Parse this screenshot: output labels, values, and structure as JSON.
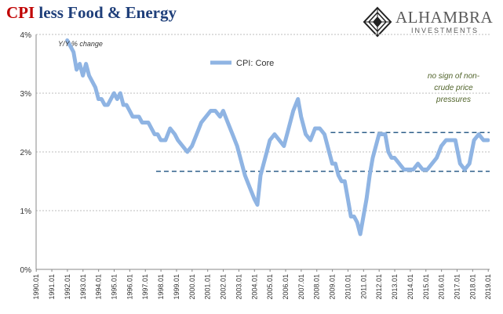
{
  "title": {
    "part1": "CPI",
    "part2": " less Food & Energy"
  },
  "logo": {
    "name": "ALHAMBRA",
    "sub": "INVESTMENTS",
    "icon": "alhambra-diamond-logo-icon"
  },
  "colors": {
    "line": "#8fb4e3",
    "dash": "#2e5f8a",
    "title_red": "#c00000",
    "title_blue": "#1f3f7a",
    "annotation": "#4f6228"
  },
  "chart_data": {
    "type": "line",
    "ylabel": "Y/Y % change",
    "ylim": [
      0,
      4
    ],
    "yticks": [
      "0%",
      "1%",
      "2%",
      "3%",
      "4%"
    ],
    "xlim": [
      1990.0,
      2019.1
    ],
    "xticks": [
      "1990.01",
      "1991.01",
      "1992.01",
      "1993.01",
      "1994.01",
      "1995.01",
      "1996.01",
      "1997.01",
      "1998.01",
      "1999.01",
      "2000.01",
      "2001.01",
      "2002.01",
      "2003.01",
      "2004.01",
      "2005.01",
      "2006.01",
      "2007.01",
      "2008.01",
      "2009.01",
      "2010.01",
      "2011.01",
      "2012.01",
      "2013.01",
      "2014.01",
      "2015.01",
      "2016.01",
      "2017.01",
      "2018.01",
      "2019.01"
    ],
    "grid": true,
    "legend_position": "top-left",
    "series": [
      {
        "name": "CPI: Core",
        "x": [
          1992.0,
          1992.2,
          1992.4,
          1992.6,
          1992.8,
          1993.0,
          1993.2,
          1993.4,
          1993.6,
          1993.8,
          1994.0,
          1994.2,
          1994.4,
          1994.6,
          1994.8,
          1995.0,
          1995.2,
          1995.4,
          1995.6,
          1995.8,
          1996.0,
          1996.2,
          1996.4,
          1996.6,
          1996.8,
          1997.0,
          1997.2,
          1997.4,
          1997.6,
          1997.8,
          1998.0,
          1998.3,
          1998.6,
          1998.9,
          1999.1,
          1999.4,
          1999.7,
          2000.0,
          2000.3,
          2000.6,
          2000.9,
          2001.2,
          2001.5,
          2001.8,
          2002.0,
          2002.3,
          2002.6,
          2002.9,
          2003.1,
          2003.4,
          2003.7,
          2004.0,
          2004.2,
          2004.4,
          2004.6,
          2004.8,
          2005.0,
          2005.3,
          2005.6,
          2005.9,
          2006.2,
          2006.5,
          2006.8,
          2007.0,
          2007.3,
          2007.6,
          2007.9,
          2008.2,
          2008.5,
          2008.8,
          2009.0,
          2009.2,
          2009.4,
          2009.6,
          2009.8,
          2010.0,
          2010.2,
          2010.4,
          2010.6,
          2010.8,
          2011.0,
          2011.2,
          2011.4,
          2011.6,
          2011.8,
          2012.0,
          2012.2,
          2012.4,
          2012.6,
          2012.8,
          2013.0,
          2013.3,
          2013.6,
          2013.9,
          2014.2,
          2014.5,
          2014.8,
          2015.1,
          2015.4,
          2015.7,
          2016.0,
          2016.3,
          2016.6,
          2016.9,
          2017.2,
          2017.5,
          2017.8,
          2018.1,
          2018.4,
          2018.7,
          2019.0
        ],
        "values": [
          3.9,
          3.8,
          3.7,
          3.4,
          3.5,
          3.3,
          3.5,
          3.3,
          3.2,
          3.1,
          2.9,
          2.9,
          2.8,
          2.8,
          2.9,
          3.0,
          2.9,
          3.0,
          2.8,
          2.8,
          2.7,
          2.6,
          2.6,
          2.6,
          2.5,
          2.5,
          2.5,
          2.4,
          2.3,
          2.3,
          2.2,
          2.2,
          2.4,
          2.3,
          2.2,
          2.1,
          2.0,
          2.1,
          2.3,
          2.5,
          2.6,
          2.7,
          2.7,
          2.6,
          2.7,
          2.5,
          2.3,
          2.1,
          1.9,
          1.6,
          1.4,
          1.2,
          1.1,
          1.6,
          1.8,
          2.0,
          2.2,
          2.3,
          2.2,
          2.1,
          2.4,
          2.7,
          2.9,
          2.6,
          2.3,
          2.2,
          2.4,
          2.4,
          2.3,
          2.0,
          1.8,
          1.8,
          1.6,
          1.5,
          1.5,
          1.2,
          0.9,
          0.9,
          0.8,
          0.6,
          0.9,
          1.2,
          1.6,
          1.9,
          2.1,
          2.3,
          2.3,
          2.3,
          2.0,
          1.9,
          1.9,
          1.8,
          1.7,
          1.7,
          1.7,
          1.8,
          1.7,
          1.7,
          1.8,
          1.9,
          2.1,
          2.2,
          2.2,
          2.2,
          1.8,
          1.7,
          1.8,
          2.2,
          2.3,
          2.2,
          2.2
        ]
      }
    ],
    "reference_lines": [
      {
        "y": 2.33,
        "x_start": 2008.9,
        "x_end": 2019.1
      },
      {
        "y": 1.67,
        "x_start": 1997.7,
        "x_end": 2019.1
      }
    ],
    "annotation": {
      "lines": [
        "no sign of non-",
        "crude price",
        "pressures"
      ],
      "position": "top-right"
    }
  }
}
